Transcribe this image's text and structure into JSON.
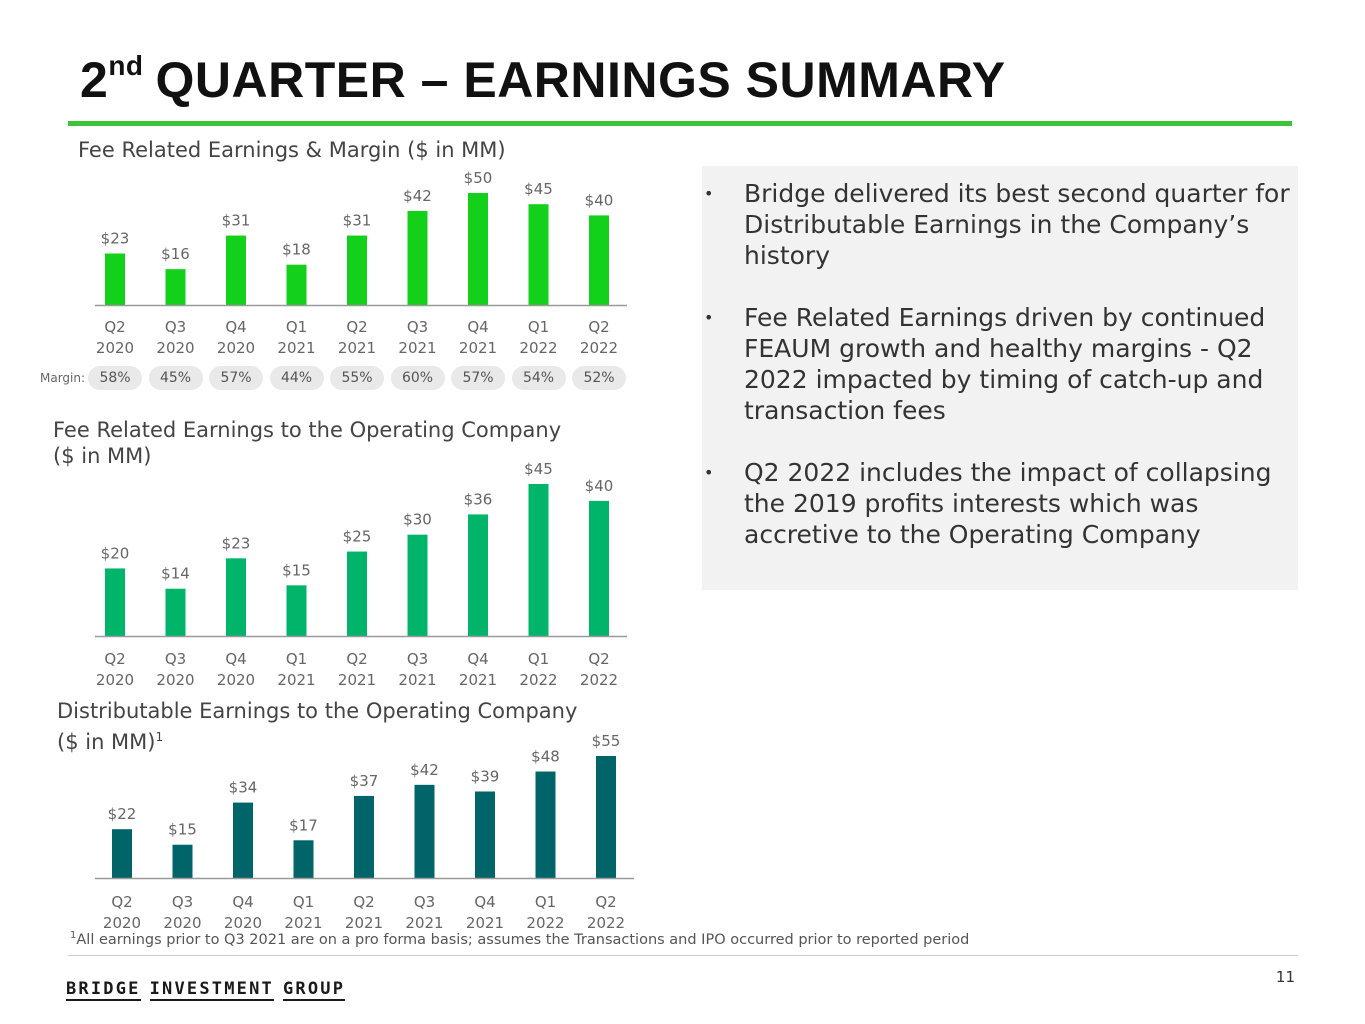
{
  "page": {
    "title_num": "2",
    "title_sup": "nd",
    "title_rest": "QUARTER – EARNINGS SUMMARY",
    "page_number": "11",
    "footnote_marker": "1",
    "footnote": "All earnings prior to Q3 2021 are on a pro forma basis; assumes the Transactions and IPO occurred prior to reported period",
    "logo_words": [
      "BRIDGE",
      "INVESTMENT",
      "GROUP"
    ],
    "margin_caption": "Margin:",
    "bullets": [
      "Bridge delivered its best second quarter for Distributable Earnings in the Company’s history",
      "Fee Related Earnings driven by continued FEAUM growth and healthy margins - Q2 2022 impacted by timing of catch-up and transaction fees",
      "Q2 2022 includes the impact of collapsing the 2019 profits interests which was accretive to the Operating Company"
    ],
    "bullet_glyph": "•"
  },
  "chart_data": [
    {
      "type": "bar",
      "title": "Fee Related Earnings & Margin ($ in MM)",
      "categories": [
        [
          "Q2",
          "2020"
        ],
        [
          "Q3",
          "2020"
        ],
        [
          "Q4",
          "2020"
        ],
        [
          "Q1",
          "2021"
        ],
        [
          "Q2",
          "2021"
        ],
        [
          "Q3",
          "2021"
        ],
        [
          "Q4",
          "2021"
        ],
        [
          "Q1",
          "2022"
        ],
        [
          "Q2",
          "2022"
        ]
      ],
      "values": [
        23,
        16,
        31,
        18,
        31,
        42,
        50,
        45,
        40
      ],
      "labels": [
        "$23",
        "$16",
        "$31",
        "$18",
        "$31",
        "$42",
        "$50",
        "$45",
        "$40"
      ],
      "margins": [
        "58%",
        "45%",
        "57%",
        "44%",
        "55%",
        "60%",
        "57%",
        "54%",
        "52%"
      ],
      "color": "#13d11b",
      "ylim": [
        0,
        50
      ]
    },
    {
      "type": "bar",
      "title": "Fee Related Earnings to the Operating Company",
      "title_line2": "($ in MM)",
      "categories": [
        [
          "Q2",
          "2020"
        ],
        [
          "Q3",
          "2020"
        ],
        [
          "Q4",
          "2020"
        ],
        [
          "Q1",
          "2021"
        ],
        [
          "Q2",
          "2021"
        ],
        [
          "Q3",
          "2021"
        ],
        [
          "Q4",
          "2021"
        ],
        [
          "Q1",
          "2022"
        ],
        [
          "Q2",
          "2022"
        ]
      ],
      "values": [
        20,
        14,
        23,
        15,
        25,
        30,
        36,
        45,
        40
      ],
      "labels": [
        "$20",
        "$14",
        "$23",
        "$15",
        "$25",
        "$30",
        "$36",
        "$45",
        "$40"
      ],
      "color": "#00b56a",
      "ylim": [
        0,
        45
      ]
    },
    {
      "type": "bar",
      "title": "Distributable Earnings to the Operating Company",
      "title_line2": "($ in MM)",
      "title_sup": "1",
      "categories": [
        [
          "Q2",
          "2020"
        ],
        [
          "Q3",
          "2020"
        ],
        [
          "Q4",
          "2020"
        ],
        [
          "Q1",
          "2021"
        ],
        [
          "Q2",
          "2021"
        ],
        [
          "Q3",
          "2021"
        ],
        [
          "Q4",
          "2021"
        ],
        [
          "Q1",
          "2022"
        ],
        [
          "Q2",
          "2022"
        ]
      ],
      "values": [
        22,
        15,
        34,
        17,
        37,
        42,
        39,
        48,
        55
      ],
      "labels": [
        "$22",
        "$15",
        "$34",
        "$17",
        "$37",
        "$42",
        "$39",
        "$48",
        "$55"
      ],
      "color": "#006469",
      "ylim": [
        0,
        55
      ]
    }
  ]
}
